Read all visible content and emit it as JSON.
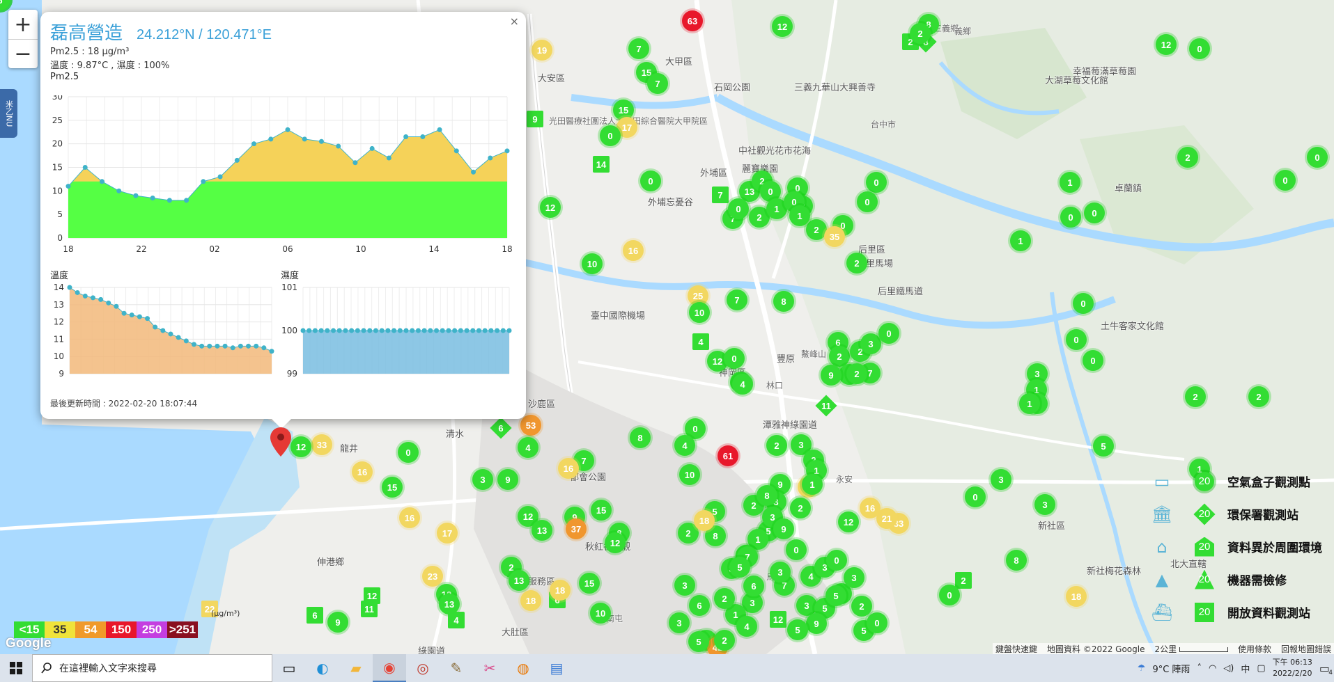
{
  "map_labels": [
    "大安區",
    "大甲區",
    "外埔區",
    "后里區",
    "后里馬場",
    "后里鐵馬道",
    "石岡公園",
    "卓蘭鎮",
    "新社區",
    "潭雅神綠園道",
    "大肚區",
    "龍井",
    "伸港鄉",
    "沙鹿區",
    "清水",
    "臺中國際機場",
    "外埔忘憂谷",
    "麗寶樂園",
    "三義九華山大興善寺",
    "幸福莓滿草莓園",
    "大湖草莓文化館",
    "中社觀光花市花海",
    "神岡區",
    "豐原",
    "都會公園",
    "秋紅谷景觀",
    "新社梅花森林",
    "北大直轄",
    "土牛客家文化館",
    "大肚服務區",
    "綠園道",
    "光田醫療社團法人大光田綜合醫院大甲院區",
    "三義鄉",
    "義鄉",
    "鰲峰山",
    "林口",
    "永安",
    "台中市",
    "烏日",
    "南屯"
  ],
  "popup": {
    "name": "磊高營造",
    "coord": "24.212°N / 120.471°E",
    "pm_line": "Pm2.5 : 18 µg/m³",
    "temp_line": "溫度 : 9.87°C , 濕度 : 100%",
    "chart_caption": "Pm2.5",
    "temp_caption": "溫度",
    "hum_caption": "濕度",
    "updated": "最後更新時間 : 2022-02-20 18:07:44",
    "close": "×"
  },
  "chart_data": [
    {
      "type": "area",
      "title": "Pm2.5",
      "x_ticks": [
        "18",
        "22",
        "02",
        "06",
        "10",
        "14",
        "18"
      ],
      "ylim": [
        0,
        30
      ],
      "y_ticks": [
        0,
        5,
        10,
        15,
        20,
        25,
        30
      ],
      "threshold": 12,
      "series": [
        {
          "name": "Pm2.5",
          "values": [
            11,
            15,
            12,
            10,
            9,
            8.5,
            8,
            8,
            12,
            13,
            16.5,
            20,
            21,
            23,
            21,
            20.5,
            19.5,
            16,
            19,
            17,
            21.5,
            21.5,
            23,
            18.5,
            14,
            17,
            18.5
          ]
        }
      ],
      "colors": {
        "below": "#55ff44",
        "above": "#f5d259",
        "point": "#3fb3c9"
      }
    },
    {
      "type": "area",
      "title": "溫度",
      "ylim": [
        9,
        14
      ],
      "y_ticks": [
        9,
        10,
        11,
        12,
        13,
        14
      ],
      "series": [
        {
          "name": "溫度",
          "values": [
            14,
            13.7,
            13.5,
            13.4,
            13.3,
            13.1,
            12.9,
            12.5,
            12.4,
            12.3,
            12.2,
            11.7,
            11.5,
            11.3,
            11.1,
            10.9,
            10.7,
            10.6,
            10.6,
            10.6,
            10.6,
            10.5,
            10.6,
            10.6,
            10.6,
            10.5,
            10.3
          ]
        }
      ],
      "colors": {
        "fill": "#f2b97a",
        "point": "#3fb3c9"
      }
    },
    {
      "type": "area",
      "title": "濕度",
      "ylim": [
        99,
        101
      ],
      "y_ticks": [
        99,
        100,
        101
      ],
      "series": [
        {
          "name": "濕度",
          "values": [
            100,
            100,
            100,
            100,
            100,
            100,
            100,
            100,
            100,
            100,
            100,
            100,
            100,
            100,
            100,
            100,
            100,
            100,
            100,
            100,
            100,
            100,
            100,
            100,
            100,
            100,
            100,
            100,
            100,
            100,
            100,
            100,
            100,
            100,
            100
          ]
        }
      ],
      "colors": {
        "fill": "#79bde0",
        "point": "#3fb3c9"
      }
    }
  ],
  "scale": [
    {
      "label": "<15",
      "color": "#33dd33"
    },
    {
      "label": "35",
      "color": "#f0e33a"
    },
    {
      "label": "54",
      "color": "#f09a2a"
    },
    {
      "label": "150",
      "color": "#e8172b"
    },
    {
      "label": "250",
      "color": "#c43ee0"
    },
    {
      "label": ">251",
      "color": "#8a1020"
    }
  ],
  "legend": [
    {
      "label": "空氣盒子觀測點",
      "value": "20",
      "shape": "circle",
      "icon": "cloud-box-icon"
    },
    {
      "label": "環保署觀測站",
      "value": "20",
      "shape": "diamond",
      "icon": "government-building-icon"
    },
    {
      "label": "資料異於周圍環境",
      "value": "20",
      "shape": "house",
      "icon": "house-icon"
    },
    {
      "label": "機器需檢修",
      "value": "20",
      "shape": "triangle",
      "icon": "lighthouse-icon"
    },
    {
      "label": "開放資料觀測站",
      "value": "20",
      "shape": "square",
      "icon": "ship-icon"
    }
  ],
  "attribution": {
    "shortcuts": "鍵盤快速鍵",
    "mapdata": "地圖資料 ©2022 Google",
    "scale_text": "2公里",
    "terms": "使用條款",
    "report": "回報地圖錯誤"
  },
  "google": "Google",
  "unit_label": "(µg/m³)",
  "taskbar": {
    "search_placeholder": "在這裡輸入文字來搜尋",
    "weather": "9°C 陣雨",
    "time": "下午 06:13",
    "date": "2022/2/20",
    "notifications": "4",
    "ime": "中"
  },
  "side_tab": "米乙NU",
  "markers": [
    {
      "v": "63",
      "c": "red",
      "s": "circle"
    },
    {
      "v": "12",
      "c": "green",
      "s": "circle"
    },
    {
      "v": "19",
      "c": "yellow",
      "s": "circle"
    },
    {
      "v": "7",
      "c": "green",
      "s": "circle"
    },
    {
      "v": "15",
      "c": "green",
      "s": "circle"
    },
    {
      "v": "7",
      "c": "green",
      "s": "circle"
    },
    {
      "v": "9",
      "c": "green",
      "s": "square"
    },
    {
      "v": "15",
      "c": "green",
      "s": "circle"
    },
    {
      "v": "17",
      "c": "yellow",
      "s": "circle"
    },
    {
      "v": "0",
      "c": "green",
      "s": "circle"
    },
    {
      "v": "14",
      "c": "green",
      "s": "square"
    },
    {
      "v": "12",
      "c": "green",
      "s": "circle"
    },
    {
      "v": "0",
      "c": "green",
      "s": "circle"
    },
    {
      "v": "7",
      "c": "green",
      "s": "square"
    },
    {
      "v": "13",
      "c": "green",
      "s": "circle"
    },
    {
      "v": "0",
      "c": "green",
      "s": "circle"
    },
    {
      "v": "3",
      "c": "green",
      "s": "circle"
    },
    {
      "v": "7",
      "c": "green",
      "s": "circle"
    },
    {
      "v": "16",
      "c": "yellow",
      "s": "circle"
    },
    {
      "v": "10",
      "c": "green",
      "s": "circle"
    },
    {
      "v": "25",
      "c": "yellow",
      "s": "circle"
    },
    {
      "v": "10",
      "c": "green",
      "s": "circle"
    },
    {
      "v": "7",
      "c": "green",
      "s": "circle"
    },
    {
      "v": "8",
      "c": "green",
      "s": "circle"
    },
    {
      "v": "4",
      "c": "green",
      "s": "square"
    },
    {
      "v": "12",
      "c": "green",
      "s": "circle"
    },
    {
      "v": "0",
      "c": "green",
      "s": "circle"
    },
    {
      "v": "4",
      "c": "green",
      "s": "circle"
    },
    {
      "v": "4",
      "c": "green",
      "s": "circle"
    },
    {
      "v": "6",
      "c": "green",
      "s": "diamond"
    },
    {
      "v": "53",
      "c": "orange",
      "s": "circle"
    },
    {
      "v": "4",
      "c": "green",
      "s": "circle"
    },
    {
      "v": "0",
      "c": "green",
      "s": "circle"
    },
    {
      "v": "61",
      "c": "red",
      "s": "circle"
    },
    {
      "v": "8",
      "c": "green",
      "s": "circle"
    },
    {
      "v": "4",
      "c": "green",
      "s": "circle"
    },
    {
      "v": "10",
      "c": "green",
      "s": "circle"
    },
    {
      "v": "7",
      "c": "green",
      "s": "circle"
    },
    {
      "v": "3",
      "c": "green",
      "s": "circle"
    },
    {
      "v": "9",
      "c": "green",
      "s": "circle"
    },
    {
      "v": "16",
      "c": "yellow",
      "s": "circle"
    },
    {
      "v": "9",
      "c": "green",
      "s": "circle"
    },
    {
      "v": "12",
      "c": "green",
      "s": "circle"
    },
    {
      "v": "13",
      "c": "green",
      "s": "circle"
    },
    {
      "v": "37",
      "c": "orange",
      "s": "circle"
    },
    {
      "v": "15",
      "c": "green",
      "s": "circle"
    },
    {
      "v": "8",
      "c": "green",
      "s": "circle"
    },
    {
      "v": "12",
      "c": "green",
      "s": "circle"
    },
    {
      "v": "33",
      "c": "yellow",
      "s": "circle"
    },
    {
      "v": "12",
      "c": "green",
      "s": "circle"
    },
    {
      "v": "0",
      "c": "green",
      "s": "circle"
    },
    {
      "v": "16",
      "c": "yellow",
      "s": "circle"
    },
    {
      "v": "15",
      "c": "green",
      "s": "circle"
    },
    {
      "v": "16",
      "c": "yellow",
      "s": "circle"
    },
    {
      "v": "17",
      "c": "yellow",
      "s": "circle"
    },
    {
      "v": "23",
      "c": "yellow",
      "s": "circle"
    },
    {
      "v": "12",
      "c": "green",
      "s": "circle"
    },
    {
      "v": "13",
      "c": "green",
      "s": "circle"
    },
    {
      "v": "4",
      "c": "green",
      "s": "square"
    },
    {
      "v": "18",
      "c": "yellow",
      "s": "circle"
    },
    {
      "v": "6",
      "c": "green",
      "s": "square"
    },
    {
      "v": "15",
      "c": "green",
      "s": "circle"
    },
    {
      "v": "10",
      "c": "green",
      "s": "circle"
    },
    {
      "v": "12",
      "c": "green",
      "s": "square"
    },
    {
      "v": "11",
      "c": "green",
      "s": "square"
    },
    {
      "v": "6",
      "c": "green",
      "s": "square"
    },
    {
      "v": "9",
      "c": "green",
      "s": "circle"
    },
    {
      "v": "13",
      "c": "green",
      "s": "circle"
    },
    {
      "v": "22",
      "c": "yellow",
      "s": "square"
    },
    {
      "v": "2",
      "c": "green",
      "s": "circle"
    },
    {
      "v": "13",
      "c": "green",
      "s": "circle"
    },
    {
      "v": "18",
      "c": "yellow",
      "s": "circle"
    },
    {
      "v": "2",
      "c": "green",
      "s": "square"
    },
    {
      "v": "8",
      "c": "green",
      "s": "diamond"
    },
    {
      "v": "8",
      "c": "green",
      "s": "circle"
    },
    {
      "v": "2",
      "c": "green",
      "s": "circle"
    },
    {
      "v": "0",
      "c": "green",
      "s": "circle"
    },
    {
      "v": "0",
      "c": "green",
      "s": "circle"
    },
    {
      "v": "2",
      "c": "green",
      "s": "circle"
    },
    {
      "v": "1",
      "c": "green",
      "s": "circle"
    },
    {
      "v": "0",
      "c": "green",
      "s": "circle"
    },
    {
      "v": "2",
      "c": "green",
      "s": "circle"
    },
    {
      "v": "1",
      "c": "green",
      "s": "circle"
    },
    {
      "v": "0",
      "c": "green",
      "s": "circle"
    },
    {
      "v": "0",
      "c": "green",
      "s": "circle"
    },
    {
      "v": "0",
      "c": "green",
      "s": "circle"
    },
    {
      "v": "35",
      "c": "yellow",
      "s": "circle"
    },
    {
      "v": "2",
      "c": "green",
      "s": "circle"
    },
    {
      "v": "6",
      "c": "green",
      "s": "circle"
    },
    {
      "v": "2",
      "c": "green",
      "s": "circle"
    },
    {
      "v": "2",
      "c": "green",
      "s": "circle"
    },
    {
      "v": "7",
      "c": "green",
      "s": "circle"
    },
    {
      "v": "3",
      "c": "green",
      "s": "circle"
    },
    {
      "v": "0",
      "c": "green",
      "s": "circle"
    },
    {
      "v": "3",
      "c": "green",
      "s": "circle"
    },
    {
      "v": "2",
      "c": "green",
      "s": "circle"
    },
    {
      "v": "9",
      "c": "green",
      "s": "circle"
    },
    {
      "v": "11",
      "c": "green",
      "s": "diamond"
    },
    {
      "v": "2",
      "c": "green",
      "s": "circle"
    },
    {
      "v": "3",
      "c": "green",
      "s": "circle"
    },
    {
      "v": "2",
      "c": "green",
      "s": "circle"
    },
    {
      "v": "1",
      "c": "green",
      "s": "circle"
    },
    {
      "v": "31",
      "c": "yellow",
      "s": "circle"
    },
    {
      "v": "9",
      "c": "green",
      "s": "circle"
    },
    {
      "v": "1",
      "c": "green",
      "s": "circle"
    },
    {
      "v": "2",
      "c": "green",
      "s": "circle"
    },
    {
      "v": "3",
      "c": "green",
      "s": "circle"
    },
    {
      "v": "2",
      "c": "green",
      "s": "circle"
    },
    {
      "v": "5",
      "c": "green",
      "s": "circle"
    },
    {
      "v": "1",
      "c": "green",
      "s": "circle"
    },
    {
      "v": "1",
      "c": "green",
      "s": "circle"
    },
    {
      "v": "3",
      "c": "green",
      "s": "circle"
    },
    {
      "v": "0",
      "c": "green",
      "s": "circle"
    },
    {
      "v": "7",
      "c": "green",
      "s": "circle"
    },
    {
      "v": "3",
      "c": "green",
      "s": "circle"
    },
    {
      "v": "4",
      "c": "green",
      "s": "circle"
    },
    {
      "v": "3",
      "c": "green",
      "s": "circle"
    },
    {
      "v": "5",
      "c": "green",
      "s": "circle"
    },
    {
      "v": "2",
      "c": "green",
      "s": "circle"
    },
    {
      "v": "3",
      "c": "green",
      "s": "circle"
    },
    {
      "v": "0",
      "c": "green",
      "s": "circle"
    },
    {
      "v": "3",
      "c": "green",
      "s": "circle"
    },
    {
      "v": "2",
      "c": "green",
      "s": "circle"
    },
    {
      "v": "5",
      "c": "green",
      "s": "circle"
    },
    {
      "v": "3",
      "c": "green",
      "s": "circle"
    },
    {
      "v": "1",
      "c": "green",
      "s": "circle"
    },
    {
      "v": "12",
      "c": "green",
      "s": "square"
    },
    {
      "v": "5",
      "c": "green",
      "s": "circle"
    },
    {
      "v": "0",
      "c": "green",
      "s": "circle"
    },
    {
      "v": "9",
      "c": "green",
      "s": "circle"
    },
    {
      "v": "4",
      "c": "green",
      "s": "circle"
    },
    {
      "v": "3",
      "c": "green",
      "s": "circle"
    },
    {
      "v": "42",
      "c": "orange",
      "s": "circle"
    },
    {
      "v": "32",
      "c": "yellow",
      "s": "circle"
    },
    {
      "v": "2",
      "c": "green",
      "s": "circle"
    },
    {
      "v": "5",
      "c": "green",
      "s": "circle"
    },
    {
      "v": "8",
      "c": "green",
      "s": "circle"
    },
    {
      "v": "7",
      "c": "green",
      "s": "circle"
    },
    {
      "v": "5",
      "c": "green",
      "s": "circle"
    },
    {
      "v": "6",
      "c": "green",
      "s": "circle"
    },
    {
      "v": "4",
      "c": "green",
      "s": "circle"
    },
    {
      "v": "2",
      "c": "green",
      "s": "circle"
    },
    {
      "v": "5",
      "c": "green",
      "s": "circle"
    },
    {
      "v": "14",
      "c": "green",
      "s": "circle"
    },
    {
      "v": "2",
      "c": "green",
      "s": "circle"
    },
    {
      "v": "6",
      "c": "green",
      "s": "circle"
    },
    {
      "v": "3",
      "c": "green",
      "s": "circle"
    },
    {
      "v": "8",
      "c": "green",
      "s": "circle"
    },
    {
      "v": "3",
      "c": "green",
      "s": "circle"
    },
    {
      "v": "9",
      "c": "green",
      "s": "circle"
    },
    {
      "v": "5",
      "c": "green",
      "s": "circle"
    },
    {
      "v": "4",
      "c": "green",
      "s": "circle"
    },
    {
      "v": "18",
      "c": "yellow",
      "s": "circle"
    },
    {
      "v": "12",
      "c": "green",
      "s": "circle"
    },
    {
      "v": "0",
      "c": "green",
      "s": "circle"
    },
    {
      "v": "0",
      "c": "green",
      "s": "circle"
    },
    {
      "v": "0",
      "c": "green",
      "s": "circle"
    },
    {
      "v": "0",
      "c": "green",
      "s": "circle"
    },
    {
      "v": "2",
      "c": "green",
      "s": "circle"
    },
    {
      "v": "1",
      "c": "green",
      "s": "circle"
    },
    {
      "v": "0",
      "c": "green",
      "s": "circle"
    },
    {
      "v": "0",
      "c": "green",
      "s": "circle"
    },
    {
      "v": "1",
      "c": "green",
      "s": "circle"
    },
    {
      "v": "0",
      "c": "green",
      "s": "circle"
    },
    {
      "v": "0",
      "c": "green",
      "s": "circle"
    },
    {
      "v": "3",
      "c": "green",
      "s": "circle"
    },
    {
      "v": "0",
      "c": "green",
      "s": "circle"
    },
    {
      "v": "1",
      "c": "green",
      "s": "circle"
    },
    {
      "v": "9",
      "c": "green",
      "s": "circle"
    },
    {
      "v": "1",
      "c": "green",
      "s": "circle"
    },
    {
      "v": "2",
      "c": "green",
      "s": "circle"
    },
    {
      "v": "2",
      "c": "green",
      "s": "circle"
    },
    {
      "v": "5",
      "c": "green",
      "s": "circle"
    },
    {
      "v": "1",
      "c": "green",
      "s": "circle"
    },
    {
      "v": "3",
      "c": "green",
      "s": "circle"
    },
    {
      "v": "0",
      "c": "green",
      "s": "circle"
    },
    {
      "v": "3",
      "c": "green",
      "s": "circle"
    },
    {
      "v": "8",
      "c": "green",
      "s": "circle"
    },
    {
      "v": "2",
      "c": "green",
      "s": "square"
    },
    {
      "v": "2",
      "c": "green",
      "s": "circle"
    },
    {
      "v": "0",
      "c": "green",
      "s": "circle"
    },
    {
      "v": "18",
      "c": "yellow",
      "s": "circle"
    },
    {
      "v": "12",
      "c": "green",
      "s": "circle"
    },
    {
      "v": "33",
      "c": "yellow",
      "s": "circle"
    },
    {
      "v": "21",
      "c": "yellow",
      "s": "circle"
    },
    {
      "v": "16",
      "c": "yellow",
      "s": "circle"
    },
    {
      "v": "5",
      "c": "green",
      "s": "circle"
    },
    {
      "v": "2",
      "c": "green",
      "s": "circle"
    },
    {
      "v": "2",
      "c": "green",
      "s": "circle"
    },
    {
      "v": "6",
      "c": "green",
      "s": "circle"
    }
  ],
  "colors": {
    "green": "#33dd33",
    "yellow": "#f2d760",
    "orange": "#f0962e",
    "red": "#e8172b",
    "accent": "#3aa0d8"
  }
}
